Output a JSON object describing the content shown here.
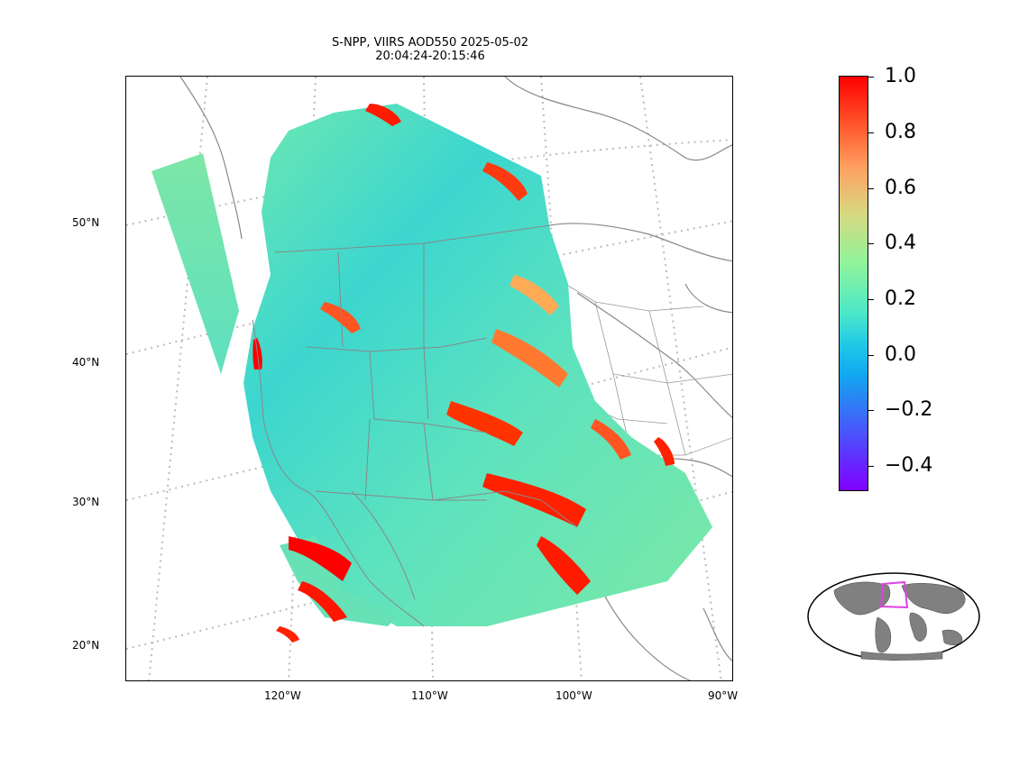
{
  "title": {
    "line1": "S-NPP, VIIRS AOD550 2025-05-02",
    "line2": "20:04:24-20:15:46"
  },
  "map": {
    "lat_labels": [
      "50°N",
      "40°N",
      "30°N",
      "20°N"
    ],
    "lon_labels": [
      "120°W",
      "110°W",
      "100°W",
      "90°W"
    ],
    "gridlines": "dotted",
    "colors": {
      "border": "#888888",
      "grid": "#bbbbbb",
      "high": "#ff0000",
      "low": "#40e0d0"
    }
  },
  "colorbar": {
    "colormap": "rainbow",
    "range": [
      -0.5,
      1.0
    ],
    "ticks": [
      "1.0",
      "0.8",
      "0.6",
      "0.4",
      "0.2",
      "0.0",
      "−0.2",
      "−0.4"
    ]
  },
  "inset": {
    "type": "global-locator",
    "box_color": "#e040e0"
  }
}
